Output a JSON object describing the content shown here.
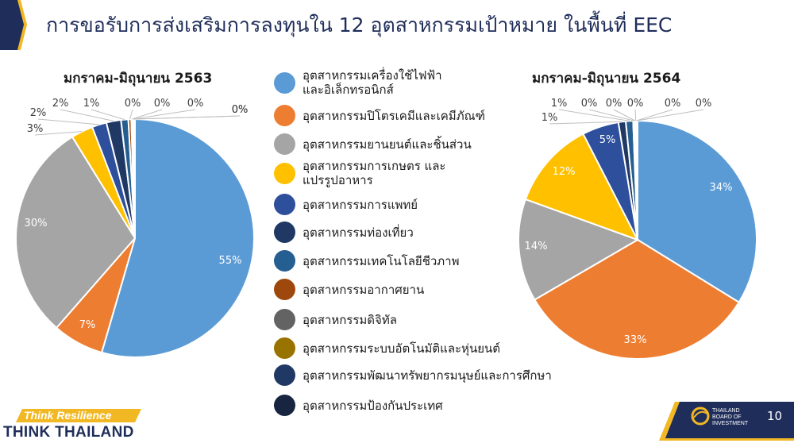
{
  "page": {
    "title": "การขอรับการส่งเสริมการลงทุนใน 12 อุตสาหกรรมเป้าหมาย ในพื้นที่ EEC",
    "page_number": "10"
  },
  "footer": {
    "tagline": "Think Resilience",
    "brand": "THINK THAILAND",
    "boi_text": "THAILAND BOARD OF INVESTMENT"
  },
  "colors": {
    "accent_navy": "#1f2d5a",
    "accent_gold": "#f2b824"
  },
  "chart_data": [
    {
      "type": "pie",
      "title": "มกราคม-มิถุนายน 2563",
      "categories": [
        "อุตสาหกรรมเครื่องใช้ไฟฟ้า และอิเล็กทรอนิกส์",
        "อุตสาหกรรมปิโตรเคมีและเคมีภัณฑ์",
        "อุตสาหกรรมยานยนต์และชิ้นส่วน",
        "อุตสาหกรรมการเกษตร และ แปรรูปอาหาร",
        "อุตสาหกรรมการแพทย์",
        "อุตสาหกรรมท่องเที่ยว",
        "อุตสาหกรรมเทคโนโลยีชีวภาพ",
        "อุตสาหกรรมอากาศยาน",
        "อุตสาหกรรมดิจิทัล",
        "อุตสาหกรรมระบบอัตโนมัติและหุ่นยนต์",
        "อุตสาหกรรมพัฒนาทรัพยากรมนุษย์และการศึกษา",
        "อุตสาหกรรมป้องกันประเทศ"
      ],
      "values": [
        55,
        7,
        30,
        3,
        2,
        2,
        1,
        0.4,
        0.2,
        0.1,
        0.1,
        0.1
      ],
      "labels": [
        "55%",
        "7%",
        "30%",
        "3%",
        "2%",
        "2%",
        "1%",
        "0%",
        "0%",
        "0%",
        "0%",
        "0%"
      ]
    },
    {
      "type": "pie",
      "title": "มกราคม-มิถุนายน 2564",
      "categories": [
        "อุตสาหกรรมเครื่องใช้ไฟฟ้า และอิเล็กทรอนิกส์",
        "อุตสาหกรรมปิโตรเคมีและเคมีภัณฑ์",
        "อุตสาหกรรมยานยนต์และชิ้นส่วน",
        "อุตสาหกรรมการเกษตร และ แปรรูปอาหาร",
        "อุตสาหกรรมการแพทย์",
        "อุตสาหกรรมท่องเที่ยว",
        "อุตสาหกรรมเทคโนโลยีชีวภาพ",
        "อุตสาหกรรมอากาศยาน",
        "อุตสาหกรรมดิจิทัล",
        "อุตสาหกรรมระบบอัตโนมัติและหุ่นยนต์",
        "อุตสาหกรรมพัฒนาทรัพยากรมนุษย์และการศึกษา",
        "อุตสาหกรรมป้องกันประเทศ"
      ],
      "values": [
        34,
        33,
        14,
        12,
        5,
        1,
        1,
        0.2,
        0.1,
        0.1,
        0.1,
        0.1
      ],
      "labels": [
        "34%",
        "33%",
        "14%",
        "12%",
        "5%",
        "1%",
        "1%",
        "0%",
        "0%",
        "0%",
        "0%",
        "0%"
      ]
    }
  ],
  "legend": [
    {
      "label": "อุตสาหกรรมเครื่องใช้ไฟฟ้า\nและอิเล็กทรอนิกส์",
      "color": "#5b9bd5"
    },
    {
      "label": "อุตสาหกรรมปิโตรเคมีและเคมีภัณฑ์",
      "color": "#ed7d31"
    },
    {
      "label": "อุตสาหกรรมยานยนต์และชิ้นส่วน",
      "color": "#a5a5a5"
    },
    {
      "label": "อุตสาหกรรมการเกษตร และ\nแปรรูปอาหาร",
      "color": "#ffc000"
    },
    {
      "label": "อุตสาหกรรมการแพทย์",
      "color": "#2e4f9b"
    },
    {
      "label": "อุตสาหกรรมท่องเที่ยว",
      "color": "#1f3864"
    },
    {
      "label": "อุตสาหกรรมเทคโนโลยีชีวภาพ",
      "color": "#255e91"
    },
    {
      "label": "อุตสาหกรรมอากาศยาน",
      "color": "#9e480e"
    },
    {
      "label": "อุตสาหกรรมดิจิทัล",
      "color": "#636363"
    },
    {
      "label": "อุตสาหกรรมระบบอัตโนมัติและหุ่นยนต์",
      "color": "#997300"
    },
    {
      "label": "อุตสาหกรรมพัฒนาทรัพยากรมนุษย์และการศึกษา",
      "color": "#203864"
    },
    {
      "label": "อุตสาหกรรมป้องกันประเทศ",
      "color": "#172540"
    }
  ]
}
